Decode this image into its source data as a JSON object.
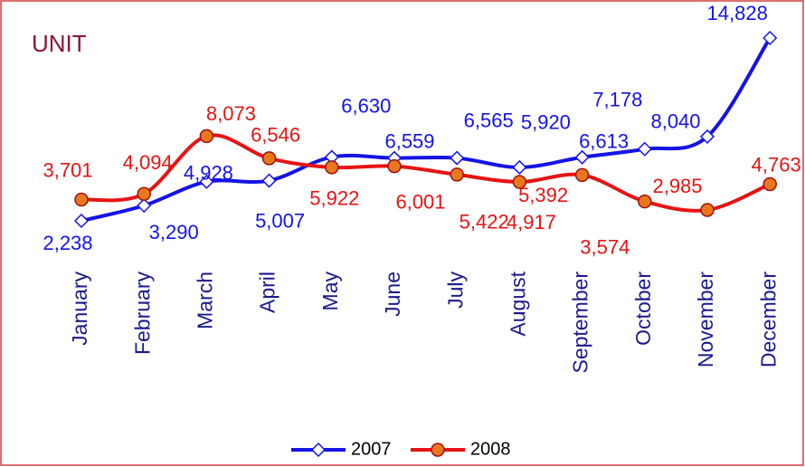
{
  "chart_data": {
    "type": "line",
    "title": "UNIT",
    "categories": [
      "January",
      "February",
      "March",
      "April",
      "May",
      "June",
      "July",
      "August",
      "September",
      "October",
      "November",
      "December"
    ],
    "series": [
      {
        "name": "2007",
        "color": "#1414e6",
        "values": [
          2238,
          3290,
          4928,
          5007,
          6630,
          6559,
          6565,
          5920,
          6613,
          7178,
          8040,
          14828
        ],
        "value_labels": [
          "2,238",
          "3,290",
          "4,928",
          "5,007",
          "6,630",
          "6,559",
          "6,565",
          "5,920",
          "6,613",
          "7,178",
          "8,040",
          "14,828"
        ]
      },
      {
        "name": "2008",
        "color": "#e61414",
        "values": [
          3701,
          4094,
          8073,
          6546,
          5922,
          6001,
          5422,
          4917,
          5392,
          3574,
          2985,
          4763
        ],
        "value_labels": [
          "3,701",
          "4,094",
          "8,073",
          "6,546",
          "5,922",
          "6,001",
          "5,422",
          "4,917",
          "5,392",
          "3,574",
          "2,985",
          "4,763"
        ]
      }
    ],
    "legend": "bottom"
  }
}
